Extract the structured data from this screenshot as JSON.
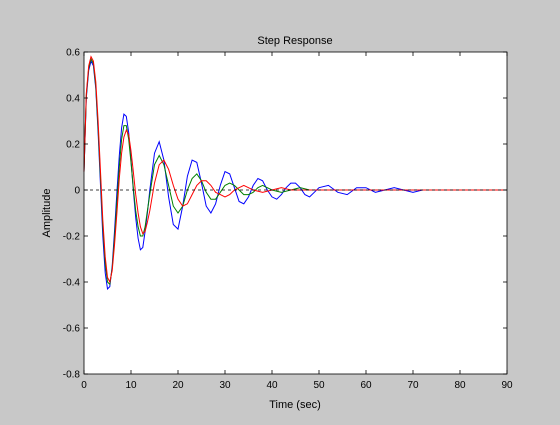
{
  "chart_data": {
    "type": "line",
    "title": "Step Response",
    "xlabel": "Time (sec)",
    "ylabel": "Amplitude",
    "xlim": [
      0,
      90
    ],
    "ylim": [
      -0.8,
      0.6
    ],
    "xticks": [
      0,
      10,
      20,
      30,
      40,
      50,
      60,
      70,
      80,
      90
    ],
    "yticks": [
      -0.8,
      -0.6,
      -0.4,
      -0.2,
      0,
      0.2,
      0.4,
      0.6
    ],
    "xtick_labels": [
      "0",
      "10",
      "20",
      "30",
      "40",
      "50",
      "60",
      "70",
      "80",
      "90"
    ],
    "ytick_labels": [
      "-0.8",
      "-0.6",
      "-0.4",
      "-0.2",
      "0",
      "0.2",
      "0.4",
      "0.6"
    ],
    "grid": false,
    "legend": "none",
    "reference_line": {
      "y": 0,
      "style": "dashed",
      "color": "#000000"
    },
    "colors": {
      "axes_bg": "#ffffff",
      "figure_bg": "#c8c8c8"
    },
    "series": [
      {
        "color": "#0000ff",
        "x": [
          0,
          0.5,
          1,
          1.5,
          2,
          2.5,
          3,
          3.5,
          4,
          4.5,
          5,
          5.5,
          6,
          6.5,
          7,
          7.5,
          8,
          8.5,
          9,
          9.5,
          10,
          10.5,
          11,
          11.5,
          12,
          12.5,
          13,
          13.5,
          14,
          15,
          16,
          17,
          18,
          19,
          20,
          21,
          22,
          23,
          24,
          25,
          26,
          27,
          28,
          29,
          30,
          31,
          32,
          33,
          34,
          35,
          36,
          37,
          38,
          39,
          40,
          41,
          42,
          43,
          44,
          45,
          46,
          47,
          48,
          49,
          50,
          52,
          54,
          56,
          58,
          60,
          62,
          64,
          66,
          68,
          70,
          72,
          74,
          76,
          78,
          80,
          85,
          90
        ],
        "y": [
          0.08,
          0.4,
          0.52,
          0.56,
          0.54,
          0.44,
          0.25,
          0.02,
          -0.2,
          -0.36,
          -0.43,
          -0.42,
          -0.33,
          -0.18,
          -0.01,
          0.15,
          0.27,
          0.33,
          0.32,
          0.25,
          0.13,
          0.0,
          -0.12,
          -0.21,
          -0.26,
          -0.25,
          -0.18,
          -0.1,
          0.0,
          0.16,
          0.21,
          0.13,
          -0.03,
          -0.15,
          -0.17,
          -0.07,
          0.06,
          0.13,
          0.12,
          0.03,
          -0.07,
          -0.1,
          -0.06,
          0.02,
          0.08,
          0.07,
          0.01,
          -0.05,
          -0.06,
          -0.03,
          0.02,
          0.05,
          0.04,
          0.0,
          -0.03,
          -0.04,
          -0.02,
          0.01,
          0.03,
          0.03,
          0.01,
          -0.02,
          -0.03,
          -0.01,
          0.01,
          0.02,
          -0.01,
          -0.02,
          0.01,
          0.01,
          -0.01,
          0.0,
          0.01,
          0.0,
          -0.01,
          0.0,
          0.0,
          0.0,
          0.0,
          0.0,
          0.0,
          0.0
        ]
      },
      {
        "color": "#008000",
        "x": [
          0,
          0.5,
          1,
          1.5,
          2,
          2.5,
          3,
          3.5,
          4,
          4.5,
          5,
          5.5,
          6,
          6.5,
          7,
          7.5,
          8,
          8.5,
          9,
          9.5,
          10,
          10.5,
          11,
          11.5,
          12,
          12.5,
          13,
          13.5,
          14,
          15,
          16,
          17,
          18,
          19,
          20,
          21,
          22,
          23,
          24,
          25,
          26,
          27,
          28,
          29,
          30,
          31,
          32,
          33,
          34,
          35,
          36,
          37,
          38,
          39,
          40,
          42,
          44,
          46,
          48,
          50,
          52,
          54,
          56,
          58,
          60,
          65,
          70,
          75,
          80,
          90
        ],
        "y": [
          0.08,
          0.41,
          0.53,
          0.57,
          0.55,
          0.45,
          0.27,
          0.05,
          -0.16,
          -0.32,
          -0.4,
          -0.41,
          -0.34,
          -0.21,
          -0.05,
          0.1,
          0.22,
          0.28,
          0.28,
          0.22,
          0.12,
          0.01,
          -0.09,
          -0.16,
          -0.2,
          -0.2,
          -0.16,
          -0.09,
          -0.02,
          0.11,
          0.15,
          0.11,
          0.02,
          -0.07,
          -0.1,
          -0.07,
          0.0,
          0.05,
          0.07,
          0.04,
          -0.01,
          -0.04,
          -0.04,
          -0.01,
          0.02,
          0.03,
          0.02,
          0.0,
          -0.02,
          -0.02,
          -0.01,
          0.01,
          0.02,
          0.01,
          0.0,
          -0.01,
          0.0,
          0.01,
          0.0,
          0.0,
          0.0,
          0.0,
          0.0,
          0.0,
          0.0,
          0.0,
          0.0,
          0.0,
          0.0,
          0.0
        ]
      },
      {
        "color": "#ff0000",
        "x": [
          0,
          0.5,
          1,
          1.5,
          2,
          2.5,
          3,
          3.5,
          4,
          4.5,
          5,
          5.5,
          6,
          6.5,
          7,
          7.5,
          8,
          8.5,
          9,
          9.5,
          10,
          10.5,
          11,
          11.5,
          12,
          12.5,
          13,
          13.5,
          14,
          15,
          16,
          17,
          18,
          19,
          20,
          21,
          22,
          23,
          24,
          25,
          26,
          27,
          28,
          29,
          30,
          31,
          32,
          33,
          34,
          35,
          36,
          38,
          40,
          42,
          44,
          46,
          48,
          50,
          55,
          60,
          65,
          70,
          75,
          80,
          90
        ],
        "y": [
          0.08,
          0.42,
          0.54,
          0.58,
          0.56,
          0.47,
          0.3,
          0.08,
          -0.13,
          -0.29,
          -0.38,
          -0.4,
          -0.35,
          -0.24,
          -0.1,
          0.05,
          0.16,
          0.23,
          0.26,
          0.24,
          0.17,
          0.08,
          -0.02,
          -0.1,
          -0.16,
          -0.19,
          -0.18,
          -0.14,
          -0.09,
          0.03,
          0.11,
          0.13,
          0.09,
          0.02,
          -0.04,
          -0.07,
          -0.06,
          -0.02,
          0.02,
          0.04,
          0.04,
          0.02,
          -0.01,
          -0.02,
          -0.03,
          -0.02,
          0.0,
          0.01,
          0.02,
          0.01,
          0.0,
          -0.01,
          0.0,
          0.01,
          0.0,
          0.0,
          0.0,
          0.0,
          0.0,
          0.0,
          0.0,
          0.0,
          0.0,
          0.0,
          0.0
        ]
      }
    ]
  }
}
